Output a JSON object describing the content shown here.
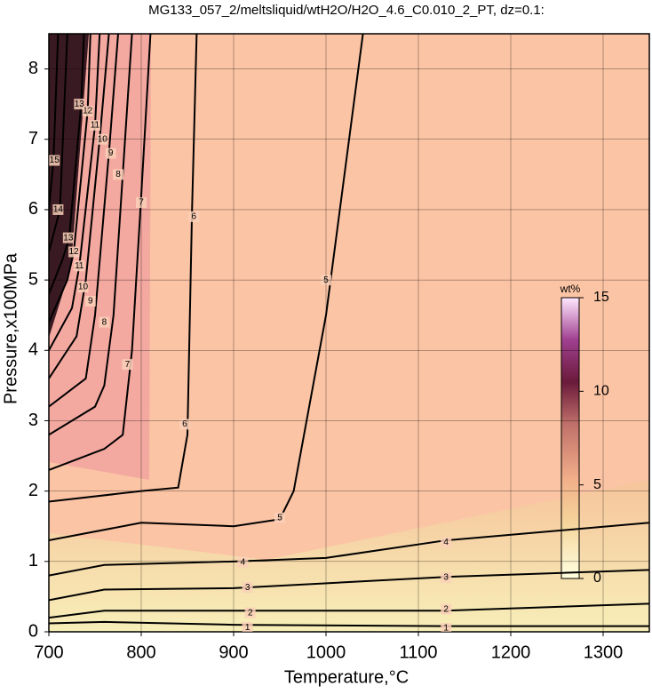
{
  "chart_data": {
    "type": "contour",
    "title": "MG133_057_2/meltsliquid/wtH2O/H2O_4.6_C0.010_2_PT, dz=0.1:",
    "x_label": "Temperature,°C",
    "y_label": "Pressure,x100MPa",
    "xlim": [
      700,
      1350
    ],
    "ylim": [
      0,
      8.5
    ],
    "xticks": [
      700,
      800,
      900,
      1000,
      1100,
      1200,
      1300
    ],
    "yticks": [
      0,
      1,
      2,
      3,
      4,
      5,
      6,
      7,
      8
    ],
    "grid": true,
    "line_color": "#000000",
    "contours": [
      {
        "level": 1,
        "x": [
          700,
          760,
          900,
          1130,
          1350
        ],
        "y": [
          0.12,
          0.14,
          0.1,
          0.08,
          0.08
        ],
        "label_x": [
          915,
          1130
        ],
        "label_y": [
          0.06,
          0.05
        ]
      },
      {
        "level": 2,
        "x": [
          700,
          760,
          900,
          1130,
          1350
        ],
        "y": [
          0.2,
          0.3,
          0.3,
          0.3,
          0.4
        ],
        "label_x": [
          918,
          1130
        ],
        "label_y": [
          0.27,
          0.32
        ]
      },
      {
        "level": 3,
        "x": [
          700,
          760,
          900,
          1130,
          1350
        ],
        "y": [
          0.45,
          0.6,
          0.62,
          0.78,
          0.88
        ],
        "label_x": [
          915,
          1130
        ],
        "label_y": [
          0.63,
          0.77
        ]
      },
      {
        "level": 4,
        "x": [
          700,
          760,
          900,
          1000,
          1130,
          1350
        ],
        "y": [
          0.8,
          0.95,
          1.0,
          1.05,
          1.3,
          1.55
        ],
        "label_x": [
          910,
          1130
        ],
        "label_y": [
          0.99,
          1.27
        ]
      },
      {
        "level": 5,
        "x": [
          700,
          800,
          900,
          950,
          965,
          1000,
          1040
        ],
        "y": [
          1.3,
          1.55,
          1.5,
          1.6,
          2.0,
          4.5,
          8.5
        ],
        "label_x": [
          950,
          1000
        ],
        "label_y": [
          1.62,
          5.0
        ]
      },
      {
        "level": 6,
        "x": [
          700,
          800,
          840,
          850,
          855,
          860
        ],
        "y": [
          1.85,
          2.0,
          2.05,
          2.8,
          6.0,
          8.5
        ],
        "label_x": [
          847,
          857
        ],
        "label_y": [
          2.95,
          5.9
        ]
      },
      {
        "level": 7,
        "x": [
          700,
          760,
          780,
          790,
          800,
          810
        ],
        "y": [
          2.3,
          2.6,
          2.8,
          4.0,
          6.2,
          8.5
        ],
        "label_x": [
          785,
          800
        ],
        "label_y": [
          3.8,
          6.1
        ]
      },
      {
        "level": 8,
        "x": [
          700,
          750,
          760,
          770,
          780,
          790
        ],
        "y": [
          2.8,
          3.2,
          3.5,
          4.5,
          6.5,
          8.5
        ],
        "label_x": [
          760,
          775
        ],
        "label_y": [
          4.4,
          6.5
        ]
      },
      {
        "level": 9,
        "x": [
          700,
          740,
          750,
          765,
          775
        ],
        "y": [
          3.2,
          3.6,
          4.5,
          6.8,
          8.5
        ],
        "label_x": [
          745,
          767
        ],
        "label_y": [
          4.7,
          6.8
        ]
      },
      {
        "level": 10,
        "x": [
          700,
          730,
          740,
          755,
          765
        ],
        "y": [
          3.6,
          4.2,
          5.0,
          7.0,
          8.5
        ],
        "label_x": [
          737,
          758
        ],
        "label_y": [
          4.9,
          7.0
        ]
      },
      {
        "level": 11,
        "x": [
          700,
          725,
          733,
          750,
          755
        ],
        "y": [
          4.0,
          4.6,
          5.2,
          7.2,
          8.5
        ],
        "label_x": [
          733,
          750
        ],
        "label_y": [
          5.2,
          7.2
        ]
      },
      {
        "level": 12,
        "x": [
          700,
          720,
          727,
          742,
          745
        ],
        "y": [
          4.4,
          5.0,
          5.4,
          7.4,
          8.5
        ],
        "label_x": [
          727,
          742
        ],
        "label_y": [
          5.4,
          7.4
        ]
      },
      {
        "level": 13,
        "x": [
          700,
          715,
          722,
          735,
          738
        ],
        "y": [
          4.8,
          5.3,
          5.6,
          7.5,
          8.5
        ],
        "label_x": [
          721,
          733
        ],
        "label_y": [
          5.6,
          7.5
        ]
      },
      {
        "level": 14,
        "x": [
          700,
          708,
          712,
          720
        ],
        "y": [
          5.4,
          5.8,
          6.0,
          8.5
        ],
        "label_x": [
          710
        ],
        "label_y": [
          6.0
        ]
      },
      {
        "level": 15,
        "x": [
          700,
          705,
          710
        ],
        "y": [
          6.0,
          6.7,
          8.5
        ],
        "label_x": [
          706
        ],
        "label_y": [
          6.7
        ]
      }
    ],
    "colorbar": {
      "label": "wt%",
      "lim": [
        0,
        15
      ],
      "ticks": [
        0,
        5,
        10,
        15
      ]
    }
  }
}
